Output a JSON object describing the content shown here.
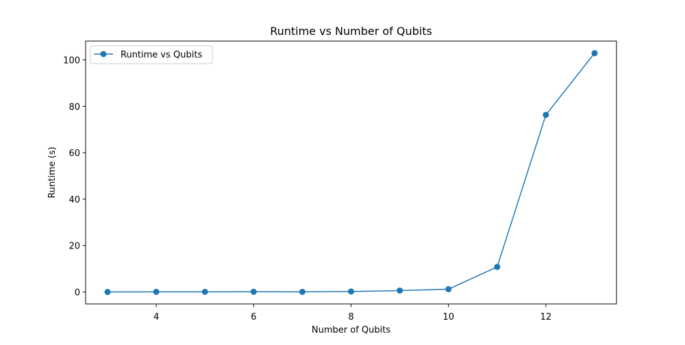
{
  "chart_data": {
    "type": "line",
    "title": "Runtime vs Number of Qubits",
    "xlabel": "Number of Qubits",
    "ylabel": "Runtime (s)",
    "xlim": [
      2.55,
      13.45
    ],
    "ylim": [
      -5.15,
      108.1
    ],
    "xticks": [
      4,
      6,
      8,
      10,
      12
    ],
    "yticks": [
      0,
      20,
      40,
      60,
      80,
      100
    ],
    "grid": false,
    "legend_position": "upper-left",
    "series": [
      {
        "name": "Runtime vs Qubits",
        "color": "#1f77b4",
        "marker": "circle",
        "x": [
          3,
          4,
          5,
          6,
          7,
          8,
          9,
          10,
          11,
          12,
          13
        ],
        "y": [
          0.0,
          0.05,
          0.05,
          0.1,
          0.05,
          0.2,
          0.6,
          1.2,
          10.8,
          76.3,
          102.9
        ]
      }
    ]
  }
}
